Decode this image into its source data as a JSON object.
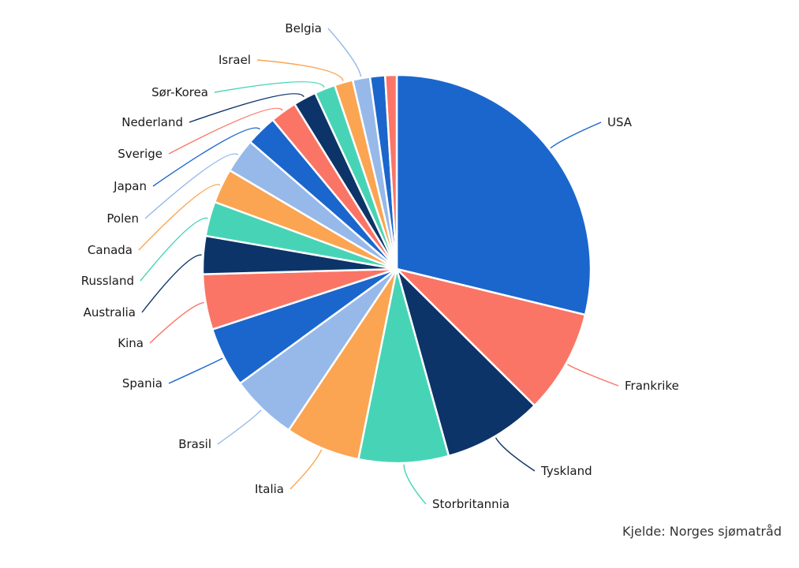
{
  "chart_data": {
    "type": "pie",
    "source": "Kjelde: Norges sjømatråd",
    "slices": [
      {
        "label": "USA",
        "value": 30.0,
        "color": "#1b66cd"
      },
      {
        "label": "Frankrike",
        "value": 9.0,
        "color": "#fa7566"
      },
      {
        "label": "Tyskland",
        "value": 8.6,
        "color": "#0c3468"
      },
      {
        "label": "Storbritannia",
        "value": 7.8,
        "color": "#47d4b6"
      },
      {
        "label": "Italia",
        "value": 6.5,
        "color": "#fba452"
      },
      {
        "label": "Brasil",
        "value": 5.8,
        "color": "#96b9ea"
      },
      {
        "label": "Spania",
        "value": 5.2,
        "color": "#1b66cd"
      },
      {
        "label": "Kina",
        "value": 4.8,
        "color": "#fa7566"
      },
      {
        "label": "Australia",
        "value": 3.3,
        "color": "#0c3468"
      },
      {
        "label": "Russland",
        "value": 3.0,
        "color": "#47d4b6"
      },
      {
        "label": "Canada",
        "value": 3.0,
        "color": "#fba452"
      },
      {
        "label": "Polen",
        "value": 3.0,
        "color": "#96b9ea"
      },
      {
        "label": "Japan",
        "value": 2.7,
        "color": "#1b66cd"
      },
      {
        "label": "Sverige",
        "value": 2.3,
        "color": "#fa7566"
      },
      {
        "label": "Nederland",
        "value": 2.0,
        "color": "#0c3468"
      },
      {
        "label": "Sør-Korea",
        "value": 1.8,
        "color": "#47d4b6"
      },
      {
        "label": "Israel",
        "value": 1.6,
        "color": "#fba452"
      },
      {
        "label": "Belgia",
        "value": 1.5,
        "color": "#96b9ea"
      },
      {
        "label": "",
        "value": 1.3,
        "color": "#1b66cd"
      },
      {
        "label": "",
        "value": 1.0,
        "color": "#fa7566"
      }
    ]
  }
}
